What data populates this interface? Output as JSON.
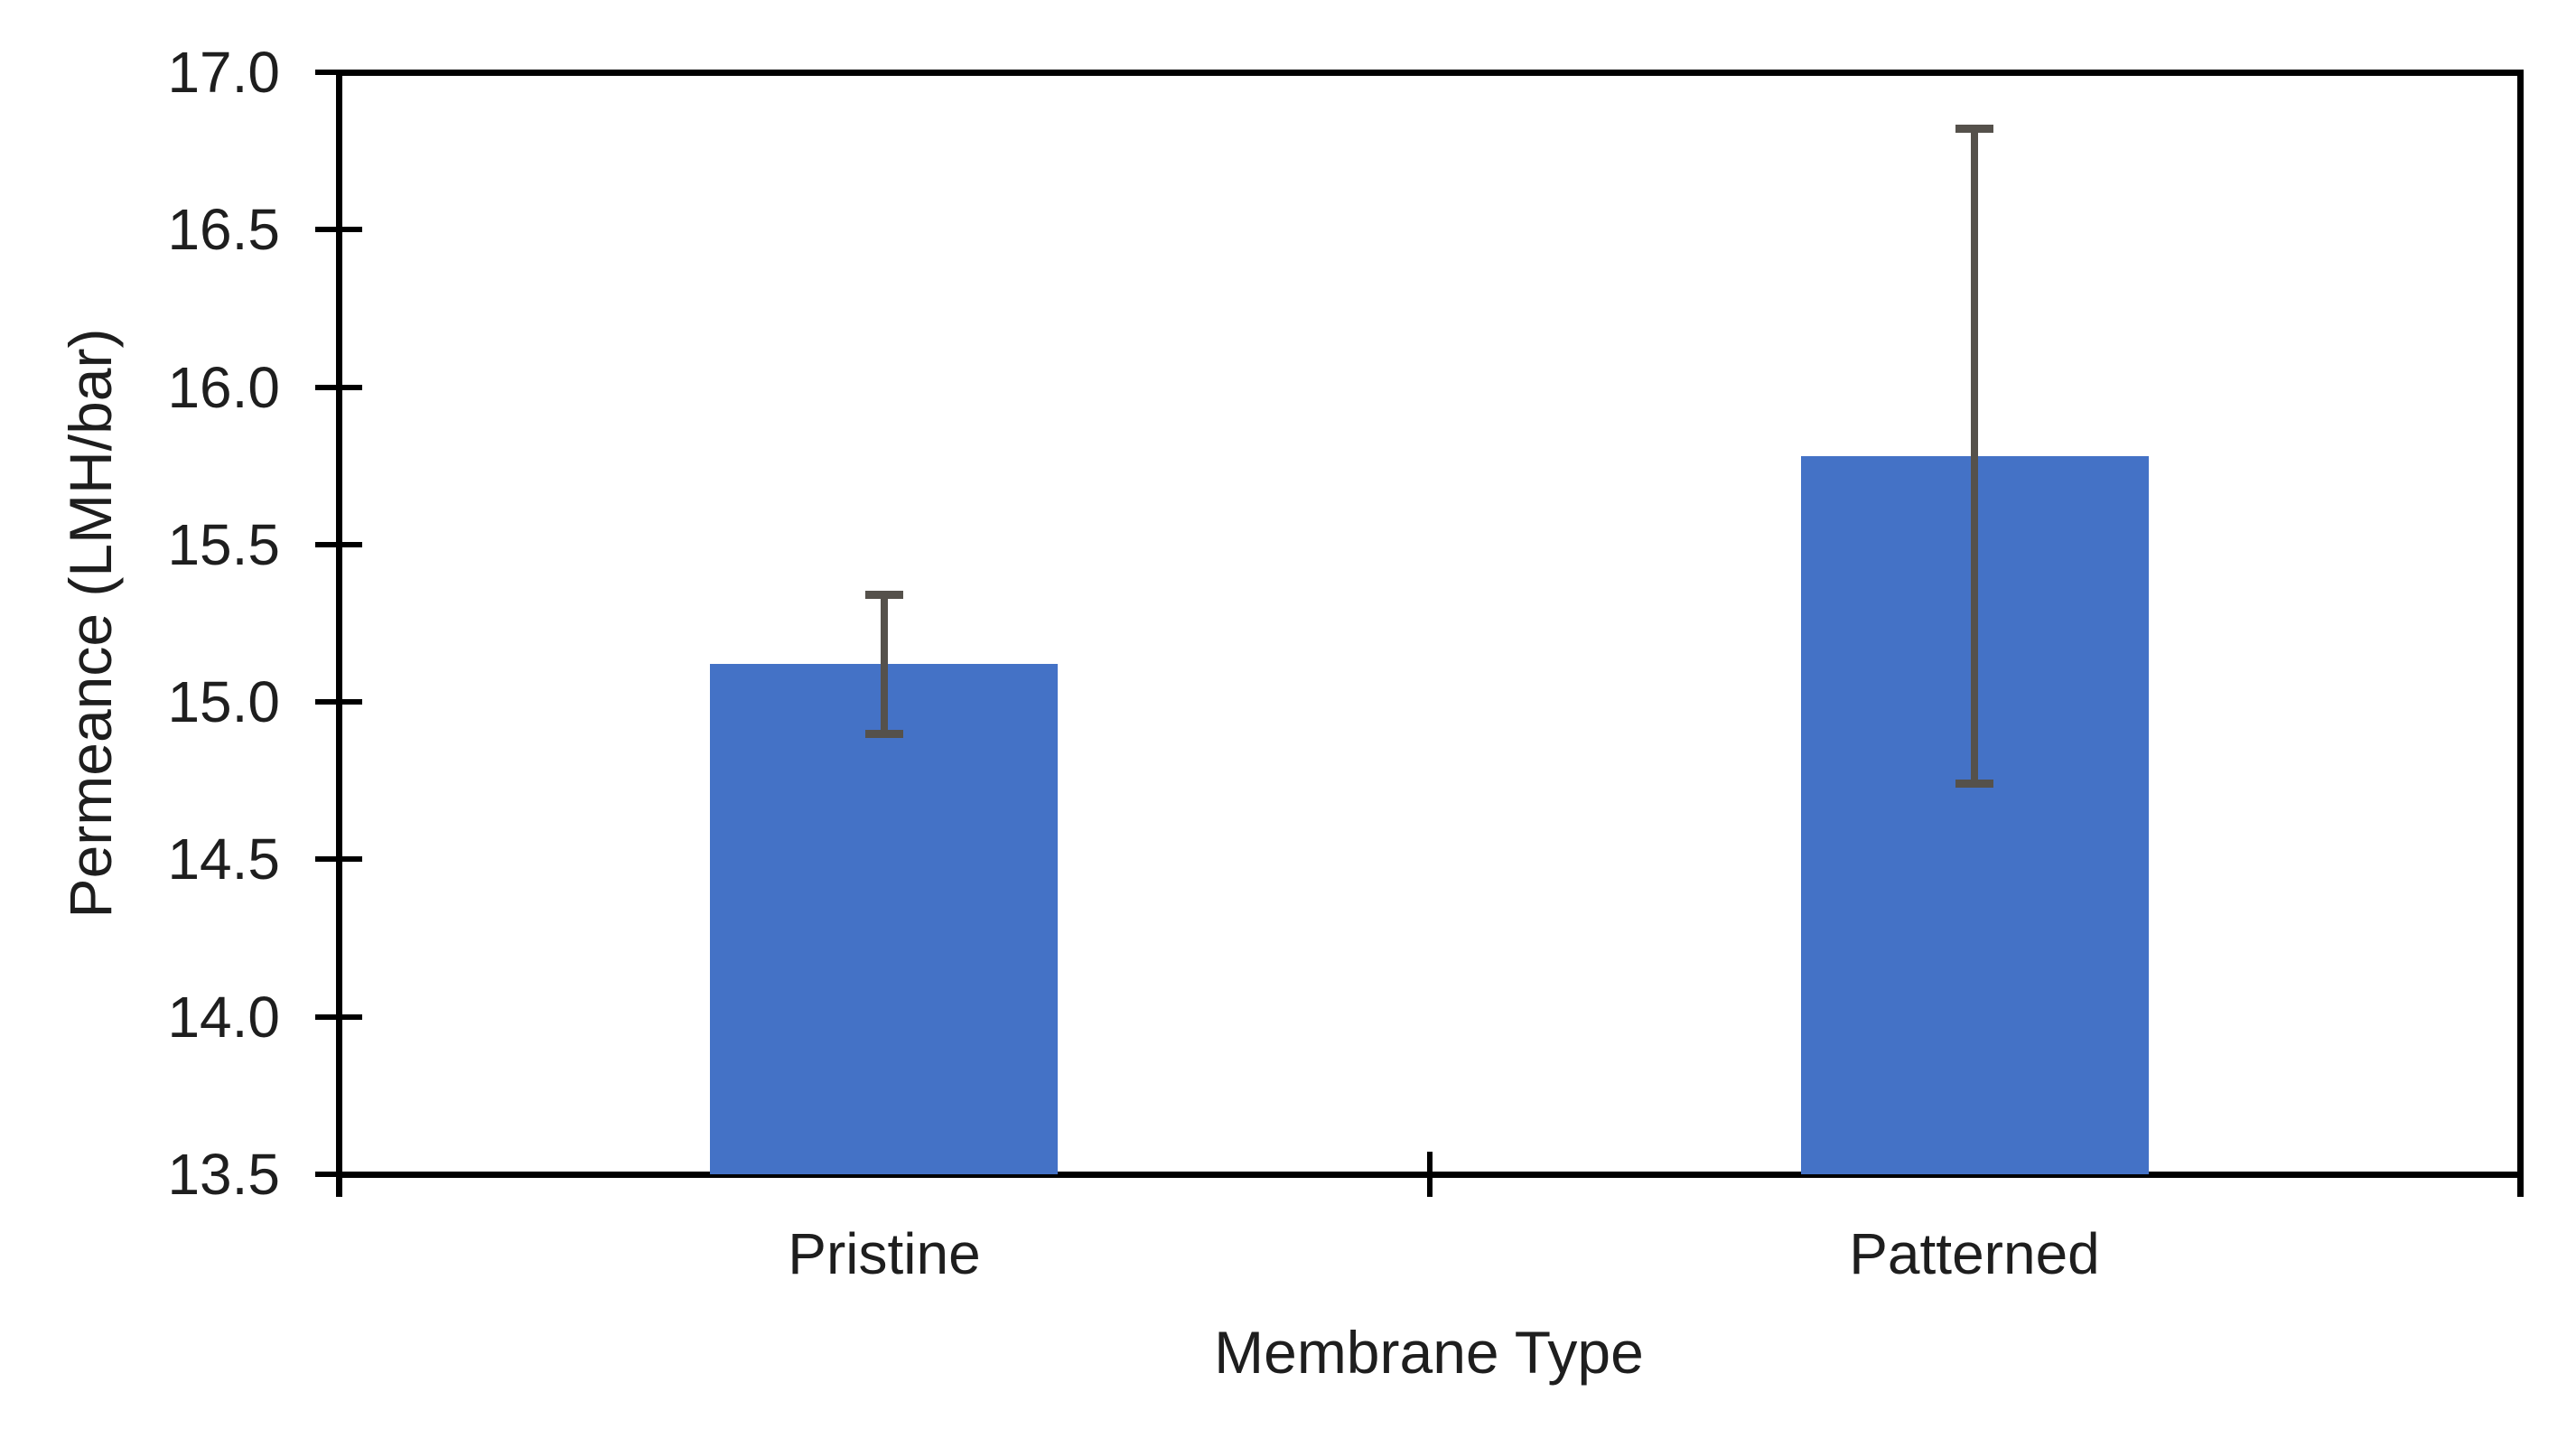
{
  "chart_data": {
    "type": "bar",
    "title": "",
    "categories": [
      "Pristine",
      "Patterned"
    ],
    "values": [
      15.12,
      15.78
    ],
    "error_bars": {
      "plus": [
        0.22,
        1.04
      ],
      "minus": [
        0.22,
        1.04
      ]
    },
    "error_caps": {
      "pristine_top": 15.34,
      "pristine_bottom": 14.9,
      "patterned_top": 16.82,
      "patterned_bottom": 14.74
    },
    "xlabel": "Membrane Type",
    "ylabel": "Permeance (LMH/bar)",
    "ylim": [
      13.5,
      17.0
    ],
    "ytick_step": 0.5,
    "ytick_labels": [
      "17.0",
      "16.5",
      "16.0",
      "15.5",
      "15.0",
      "14.5",
      "14.0",
      "13.5"
    ],
    "grid": false,
    "legend": false,
    "plot_border": true,
    "bar_color": "#4472C6",
    "error_bar_color": "#55514B",
    "axis_color": "#000000",
    "text_color": "#1E1E1E",
    "background_color": "#FFFFFF"
  }
}
